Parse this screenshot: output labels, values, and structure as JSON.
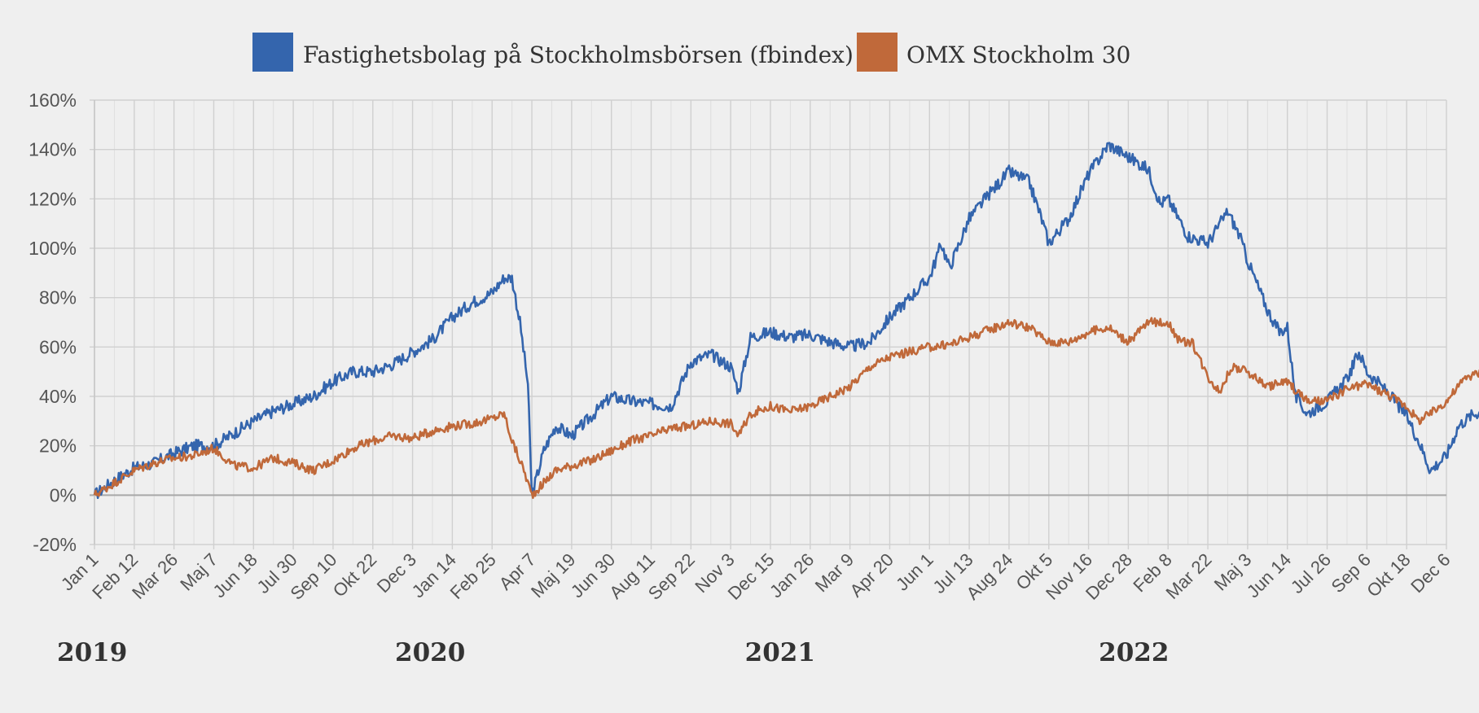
{
  "chart_data": {
    "type": "line",
    "title": "",
    "xlabel": "",
    "ylabel": "",
    "ylim": [
      -20,
      160
    ],
    "grid": true,
    "legend_position": "top-center",
    "y_ticks": [
      "-20%",
      "0%",
      "20%",
      "40%",
      "60%",
      "80%",
      "100%",
      "120%",
      "140%",
      "160%"
    ],
    "y_tick_values": [
      -20,
      0,
      20,
      40,
      60,
      80,
      100,
      120,
      140,
      160
    ],
    "x_ticks": [
      "Jan 1",
      "Feb 12",
      "Mar 26",
      "Maj 7",
      "Jun 18",
      "Jul 30",
      "Sep 10",
      "Okt 22",
      "Dec 3",
      "Jan 14",
      "Feb 25",
      "Apr 7",
      "Maj 19",
      "Jun 30",
      "Aug 11",
      "Sep 22",
      "Nov 3",
      "Dec 15",
      "Jan 26",
      "Mar 9",
      "Apr 20",
      "Jun 1",
      "Jul 13",
      "Aug 24",
      "Okt 5",
      "Nov 16",
      "Dec 28",
      "Feb 8",
      "Mar 22",
      "Maj 3",
      "Jun 14",
      "Jul 26",
      "Sep 6",
      "Okt 18",
      "Dec 6"
    ],
    "years": [
      {
        "label": "2019",
        "at_tick": 0
      },
      {
        "label": "2020",
        "at_tick": 8.5
      },
      {
        "label": "2021",
        "at_tick": 17.3
      },
      {
        "label": "2022",
        "at_tick": 26.2
      }
    ],
    "series": [
      {
        "name": "Fastighetsbolag på Stockholmsbörsen (fbindex)",
        "color": "#3465ad",
        "points": [
          [
            0,
            0
          ],
          [
            0.5,
            6
          ],
          [
            1,
            11
          ],
          [
            1.5,
            13
          ],
          [
            2,
            17
          ],
          [
            2.5,
            20
          ],
          [
            3,
            20
          ],
          [
            3.5,
            25
          ],
          [
            4,
            30
          ],
          [
            4.5,
            34
          ],
          [
            5,
            37
          ],
          [
            5.5,
            40
          ],
          [
            6,
            46
          ],
          [
            6.5,
            50
          ],
          [
            7,
            50
          ],
          [
            7.5,
            53
          ],
          [
            8,
            58
          ],
          [
            8.5,
            63
          ],
          [
            9,
            72
          ],
          [
            9.5,
            78
          ],
          [
            10,
            82
          ],
          [
            10.3,
            88
          ],
          [
            10.5,
            88
          ],
          [
            10.7,
            70
          ],
          [
            10.9,
            45
          ],
          [
            11,
            0
          ],
          [
            11.3,
            18
          ],
          [
            11.6,
            28
          ],
          [
            12,
            24
          ],
          [
            12.5,
            32
          ],
          [
            13,
            40
          ],
          [
            13.5,
            38
          ],
          [
            14,
            37
          ],
          [
            14.5,
            36
          ],
          [
            15,
            54
          ],
          [
            15.5,
            57
          ],
          [
            16,
            52
          ],
          [
            16.2,
            42
          ],
          [
            16.5,
            64
          ],
          [
            17,
            66
          ],
          [
            17.5,
            64
          ],
          [
            18,
            65
          ],
          [
            18.5,
            62
          ],
          [
            19,
            60
          ],
          [
            19.5,
            62
          ],
          [
            20,
            72
          ],
          [
            20.5,
            80
          ],
          [
            21,
            88
          ],
          [
            21.3,
            102
          ],
          [
            21.5,
            92
          ],
          [
            22,
            112
          ],
          [
            22.5,
            122
          ],
          [
            23,
            131
          ],
          [
            23.5,
            127
          ],
          [
            23.8,
            113
          ],
          [
            24,
            102
          ],
          [
            24.5,
            112
          ],
          [
            25,
            130
          ],
          [
            25.5,
            142
          ],
          [
            26,
            137
          ],
          [
            26.5,
            132
          ],
          [
            26.8,
            118
          ],
          [
            27,
            120
          ],
          [
            27.5,
            105
          ],
          [
            28,
            102
          ],
          [
            28.5,
            115
          ],
          [
            28.8,
            105
          ],
          [
            29,
            95
          ],
          [
            29.5,
            75
          ],
          [
            29.8,
            66
          ],
          [
            30,
            68
          ],
          [
            30.2,
            40
          ],
          [
            30.5,
            33
          ],
          [
            31,
            38
          ],
          [
            31.5,
            47
          ],
          [
            31.8,
            58
          ],
          [
            32,
            50
          ],
          [
            32.5,
            42
          ],
          [
            33,
            32
          ],
          [
            33.3,
            22
          ],
          [
            33.6,
            10
          ],
          [
            34,
            16
          ],
          [
            34.3,
            28
          ],
          [
            34.6,
            32
          ],
          [
            35,
            35
          ]
        ]
      },
      {
        "name": "OMX Stockholm 30",
        "color": "#c0693a",
        "points": [
          [
            0,
            0
          ],
          [
            0.5,
            5
          ],
          [
            1,
            10
          ],
          [
            1.5,
            13
          ],
          [
            2,
            15
          ],
          [
            2.5,
            16
          ],
          [
            3,
            19
          ],
          [
            3.5,
            12
          ],
          [
            4,
            11
          ],
          [
            4.5,
            15
          ],
          [
            5,
            13
          ],
          [
            5.5,
            10
          ],
          [
            6,
            14
          ],
          [
            6.5,
            19
          ],
          [
            7,
            22
          ],
          [
            7.5,
            24
          ],
          [
            8,
            23
          ],
          [
            8.5,
            26
          ],
          [
            9,
            28
          ],
          [
            9.5,
            29
          ],
          [
            10,
            31
          ],
          [
            10.3,
            33
          ],
          [
            10.5,
            22
          ],
          [
            10.8,
            10
          ],
          [
            11,
            0
          ],
          [
            11.3,
            5
          ],
          [
            11.6,
            10
          ],
          [
            12,
            12
          ],
          [
            12.5,
            14
          ],
          [
            13,
            18
          ],
          [
            13.5,
            22
          ],
          [
            14,
            24
          ],
          [
            14.5,
            27
          ],
          [
            15,
            28
          ],
          [
            15.5,
            30
          ],
          [
            16,
            29
          ],
          [
            16.2,
            24
          ],
          [
            16.5,
            33
          ],
          [
            17,
            36
          ],
          [
            17.5,
            34
          ],
          [
            18,
            36
          ],
          [
            18.5,
            40
          ],
          [
            19,
            44
          ],
          [
            19.5,
            52
          ],
          [
            20,
            56
          ],
          [
            20.5,
            58
          ],
          [
            21,
            60
          ],
          [
            21.5,
            61
          ],
          [
            22,
            64
          ],
          [
            22.5,
            67
          ],
          [
            23,
            70
          ],
          [
            23.5,
            68
          ],
          [
            24,
            62
          ],
          [
            24.5,
            62
          ],
          [
            25,
            66
          ],
          [
            25.5,
            68
          ],
          [
            26,
            62
          ],
          [
            26.5,
            70
          ],
          [
            27,
            70
          ],
          [
            27.3,
            62
          ],
          [
            27.6,
            62
          ],
          [
            28,
            48
          ],
          [
            28.3,
            42
          ],
          [
            28.6,
            52
          ],
          [
            29,
            50
          ],
          [
            29.5,
            44
          ],
          [
            30,
            46
          ],
          [
            30.5,
            38
          ],
          [
            31,
            38
          ],
          [
            31.5,
            43
          ],
          [
            32,
            45
          ],
          [
            32.5,
            41
          ],
          [
            33,
            36
          ],
          [
            33.3,
            30
          ],
          [
            33.6,
            33
          ],
          [
            34,
            38
          ],
          [
            34.5,
            48
          ],
          [
            35,
            50
          ]
        ]
      }
    ]
  }
}
